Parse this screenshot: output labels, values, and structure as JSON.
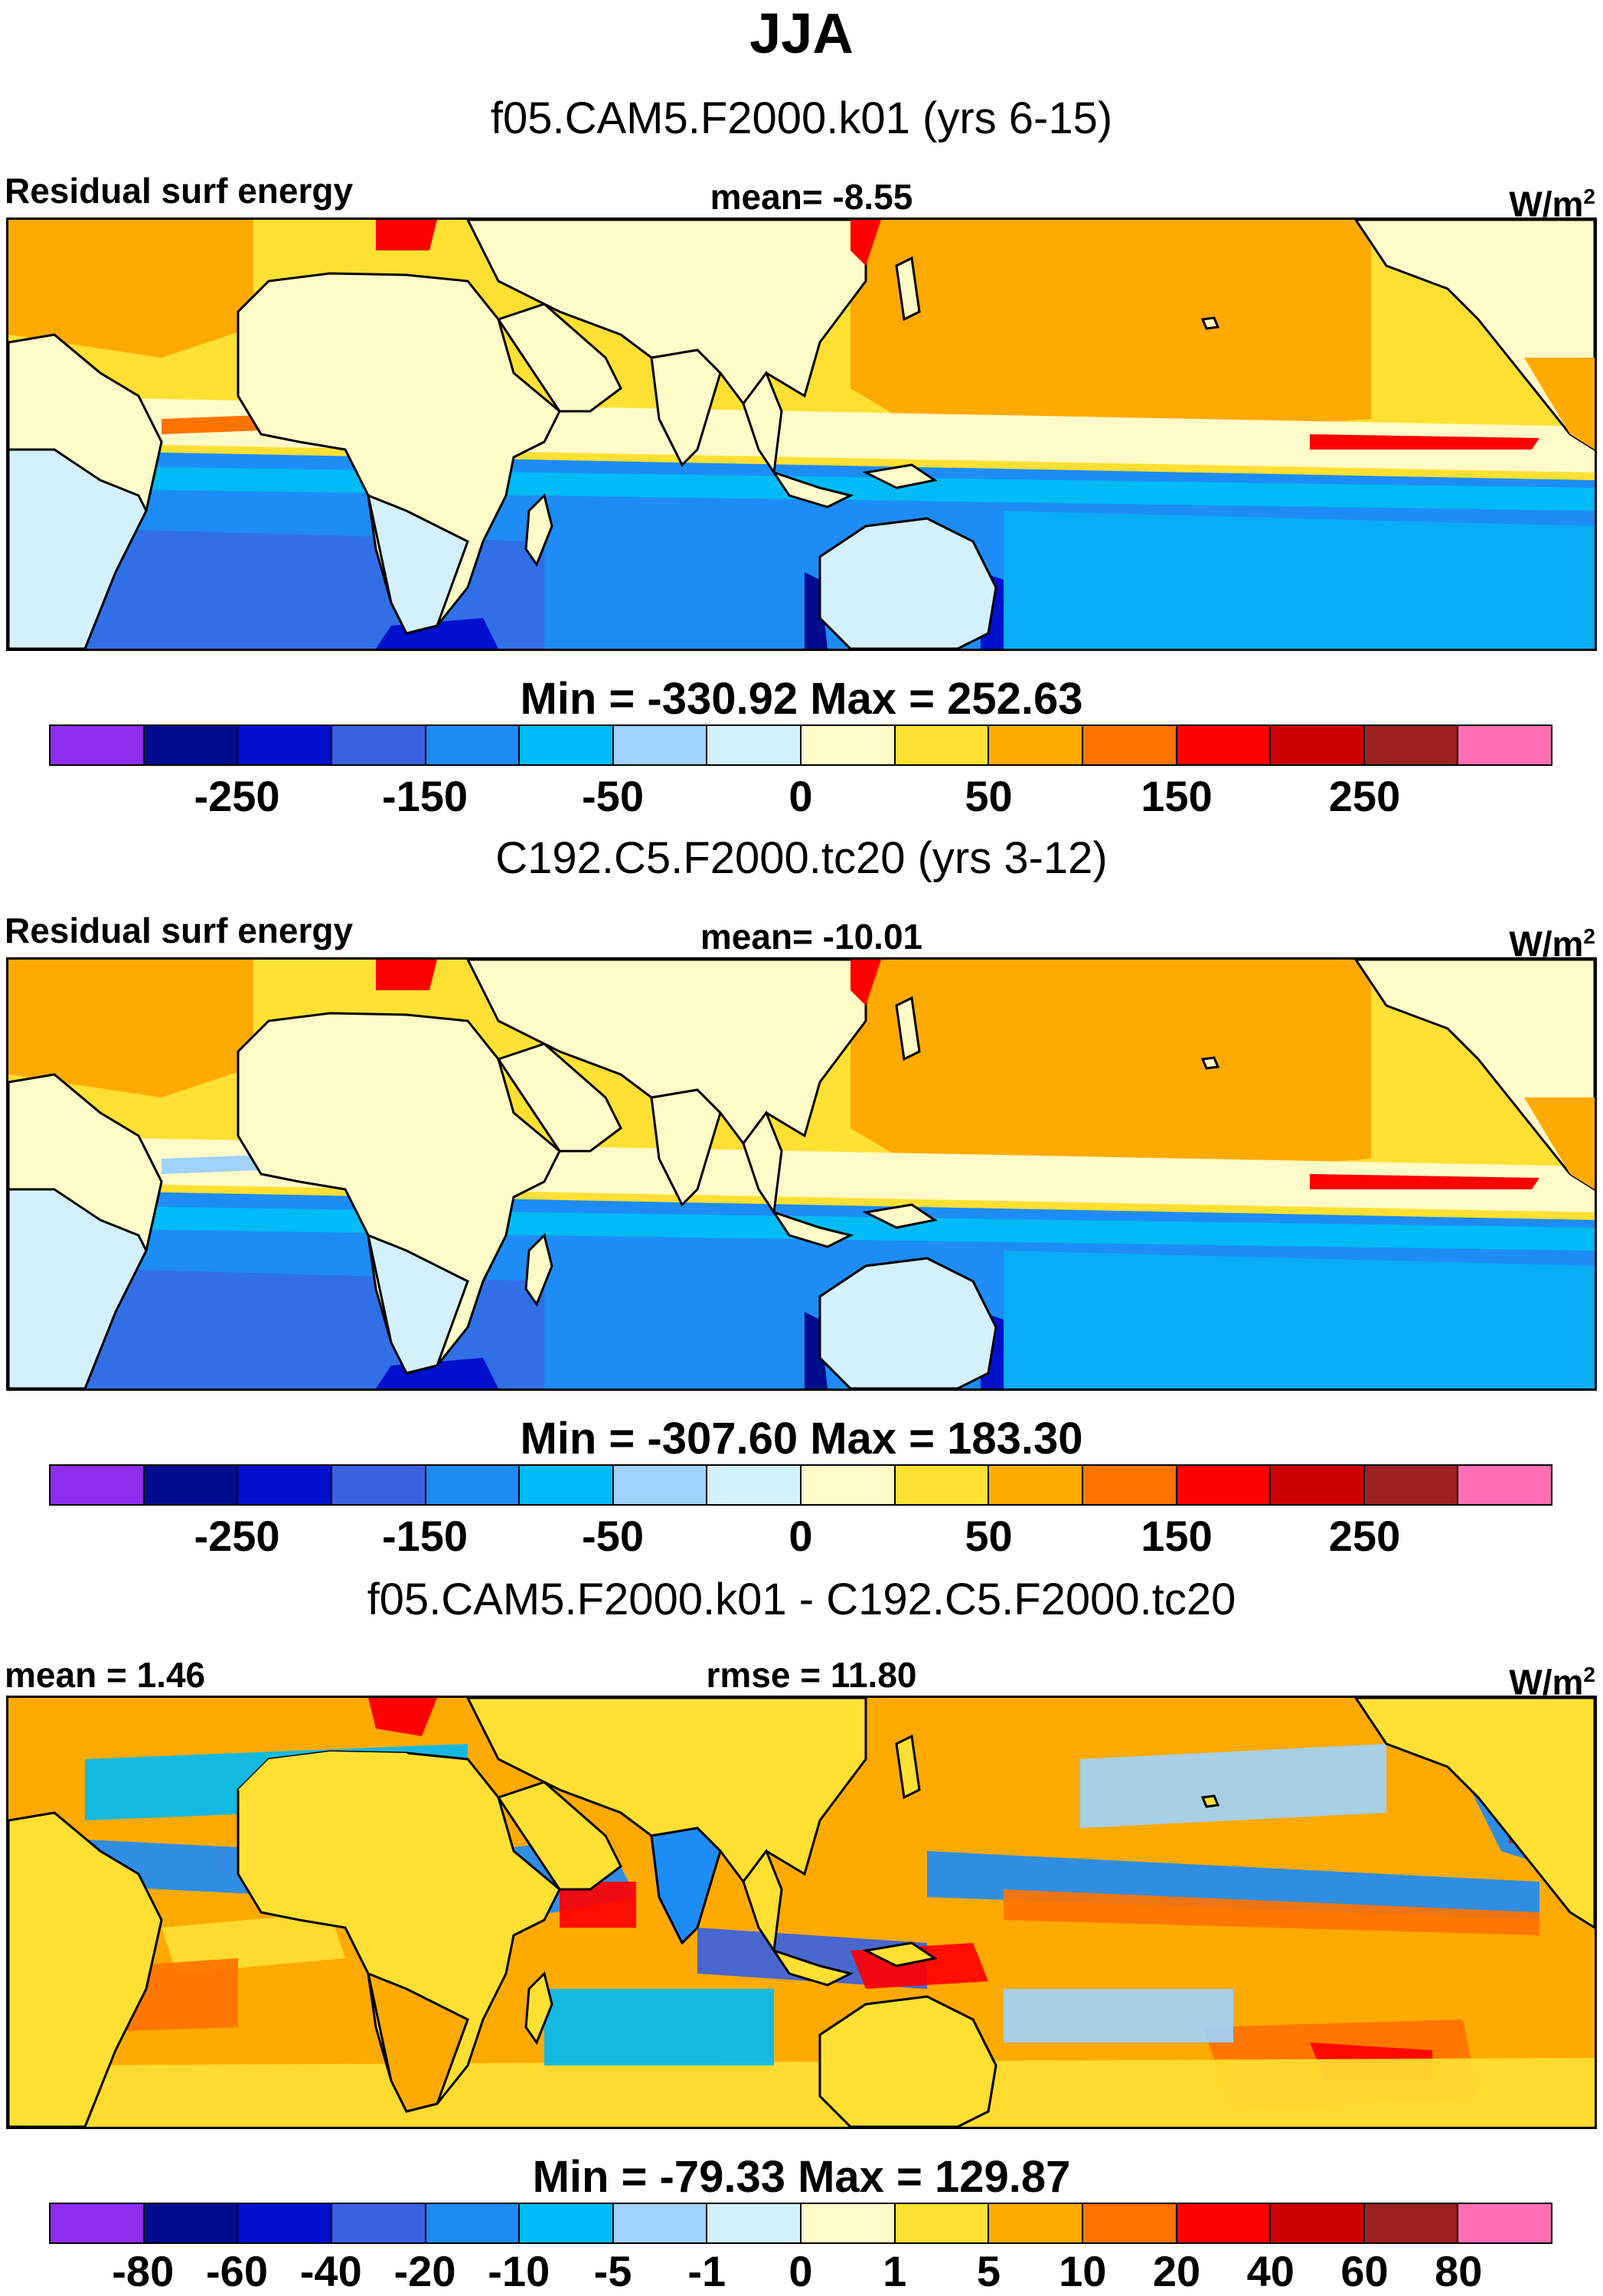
{
  "title": "JJA",
  "panels": [
    {
      "case": "f05.CAM5.F2000.k01 (yrs 6-15)",
      "left_label": "Residual surf energy",
      "center_label": "mean=  -8.55",
      "right_label": "W/m",
      "right_label_sup": "2",
      "minmax": "Min = -330.92 Max = 252.63",
      "colorbar_ticks": [
        "-250",
        "-150",
        "-50",
        "0",
        "50",
        "150",
        "250"
      ],
      "colorbar_tick_boundaries": [
        2,
        4,
        6,
        8,
        10,
        12,
        14
      ]
    },
    {
      "case": "C192.C5.F2000.tc20 (yrs 3-12)",
      "left_label": "Residual surf energy",
      "center_label": "mean= -10.01",
      "right_label": "W/m",
      "right_label_sup": "2",
      "minmax": "Min = -307.60 Max = 183.30",
      "colorbar_ticks": [
        "-250",
        "-150",
        "-50",
        "0",
        "50",
        "150",
        "250"
      ],
      "colorbar_tick_boundaries": [
        2,
        4,
        6,
        8,
        10,
        12,
        14
      ]
    },
    {
      "case": "f05.CAM5.F2000.k01 - C192.C5.F2000.tc20",
      "left_label": "mean =   1.46",
      "center_label": "rmse =  11.80",
      "right_label": "W/m",
      "right_label_sup": "2",
      "minmax": "Min = -79.33 Max = 129.87",
      "colorbar_ticks": [
        "-80",
        "-60",
        "-40",
        "-20",
        "-10",
        "-5",
        "-1",
        "0",
        "1",
        "5",
        "10",
        "20",
        "40",
        "60",
        "80"
      ],
      "colorbar_tick_boundaries": [
        1,
        2,
        3,
        4,
        5,
        6,
        7,
        8,
        9,
        10,
        11,
        12,
        13,
        14,
        15
      ]
    }
  ],
  "colorbar_colors": [
    "#8f2cf0",
    "#000c8e",
    "#0010cc",
    "#3a62e0",
    "#1e8cf5",
    "#00bbf5",
    "#a0d2fa",
    "#d4f1fb",
    "#fffbc8",
    "#ffe033",
    "#ffaa00",
    "#ff7300",
    "#ff0000",
    "#cc0000",
    "#9e2020",
    "#ff6eb4"
  ]
}
